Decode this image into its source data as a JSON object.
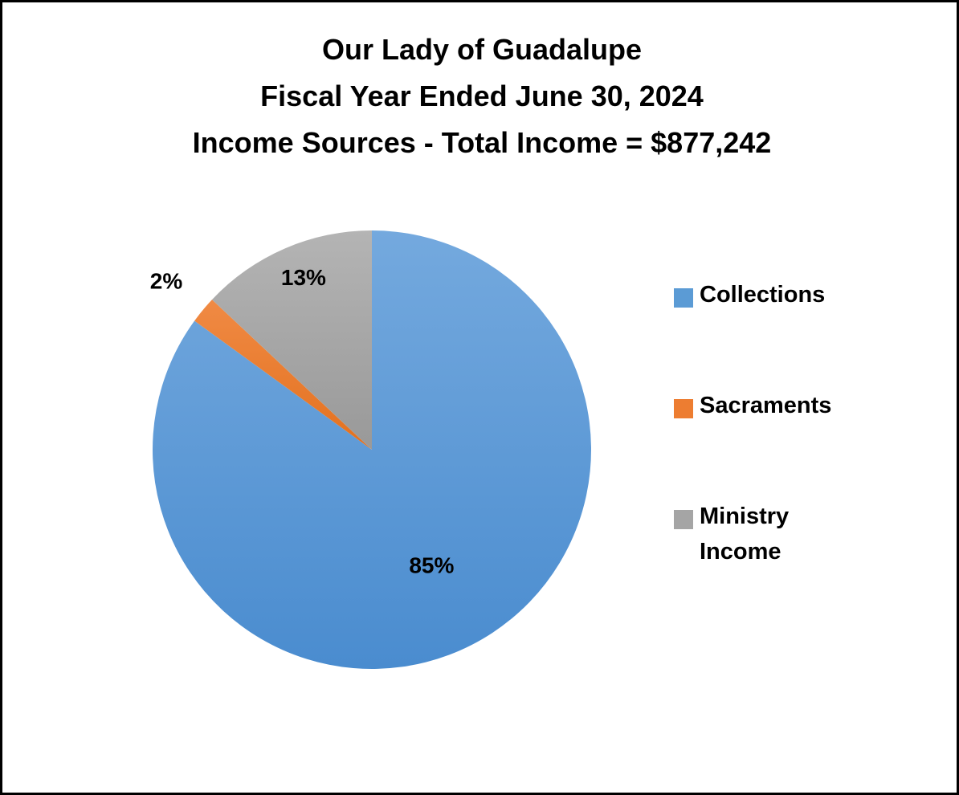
{
  "chart_data": {
    "type": "pie",
    "title_lines": [
      "Our Lady of Guadalupe",
      "Fiscal Year Ended June 30, 2024",
      "Income Sources - Total Income = $877,242"
    ],
    "slices": [
      {
        "name": "Collections",
        "value": 85,
        "label": "85%",
        "color": "#5b9bd5"
      },
      {
        "name": "Sacraments",
        "value": 2,
        "label": "2%",
        "color": "#ed7d31"
      },
      {
        "name": "Ministry Income",
        "value": 13,
        "label": "13%",
        "color": "#a5a5a5"
      }
    ],
    "start_angle_deg": 0,
    "direction": "clockwise",
    "legend_position": "right",
    "legend": [
      {
        "lines": [
          "Collections"
        ],
        "color": "#5b9bd5"
      },
      {
        "lines": [
          "Sacraments"
        ],
        "color": "#ed7d31"
      },
      {
        "lines": [
          "Ministry",
          "Income"
        ],
        "color": "#a5a5a5"
      }
    ]
  }
}
